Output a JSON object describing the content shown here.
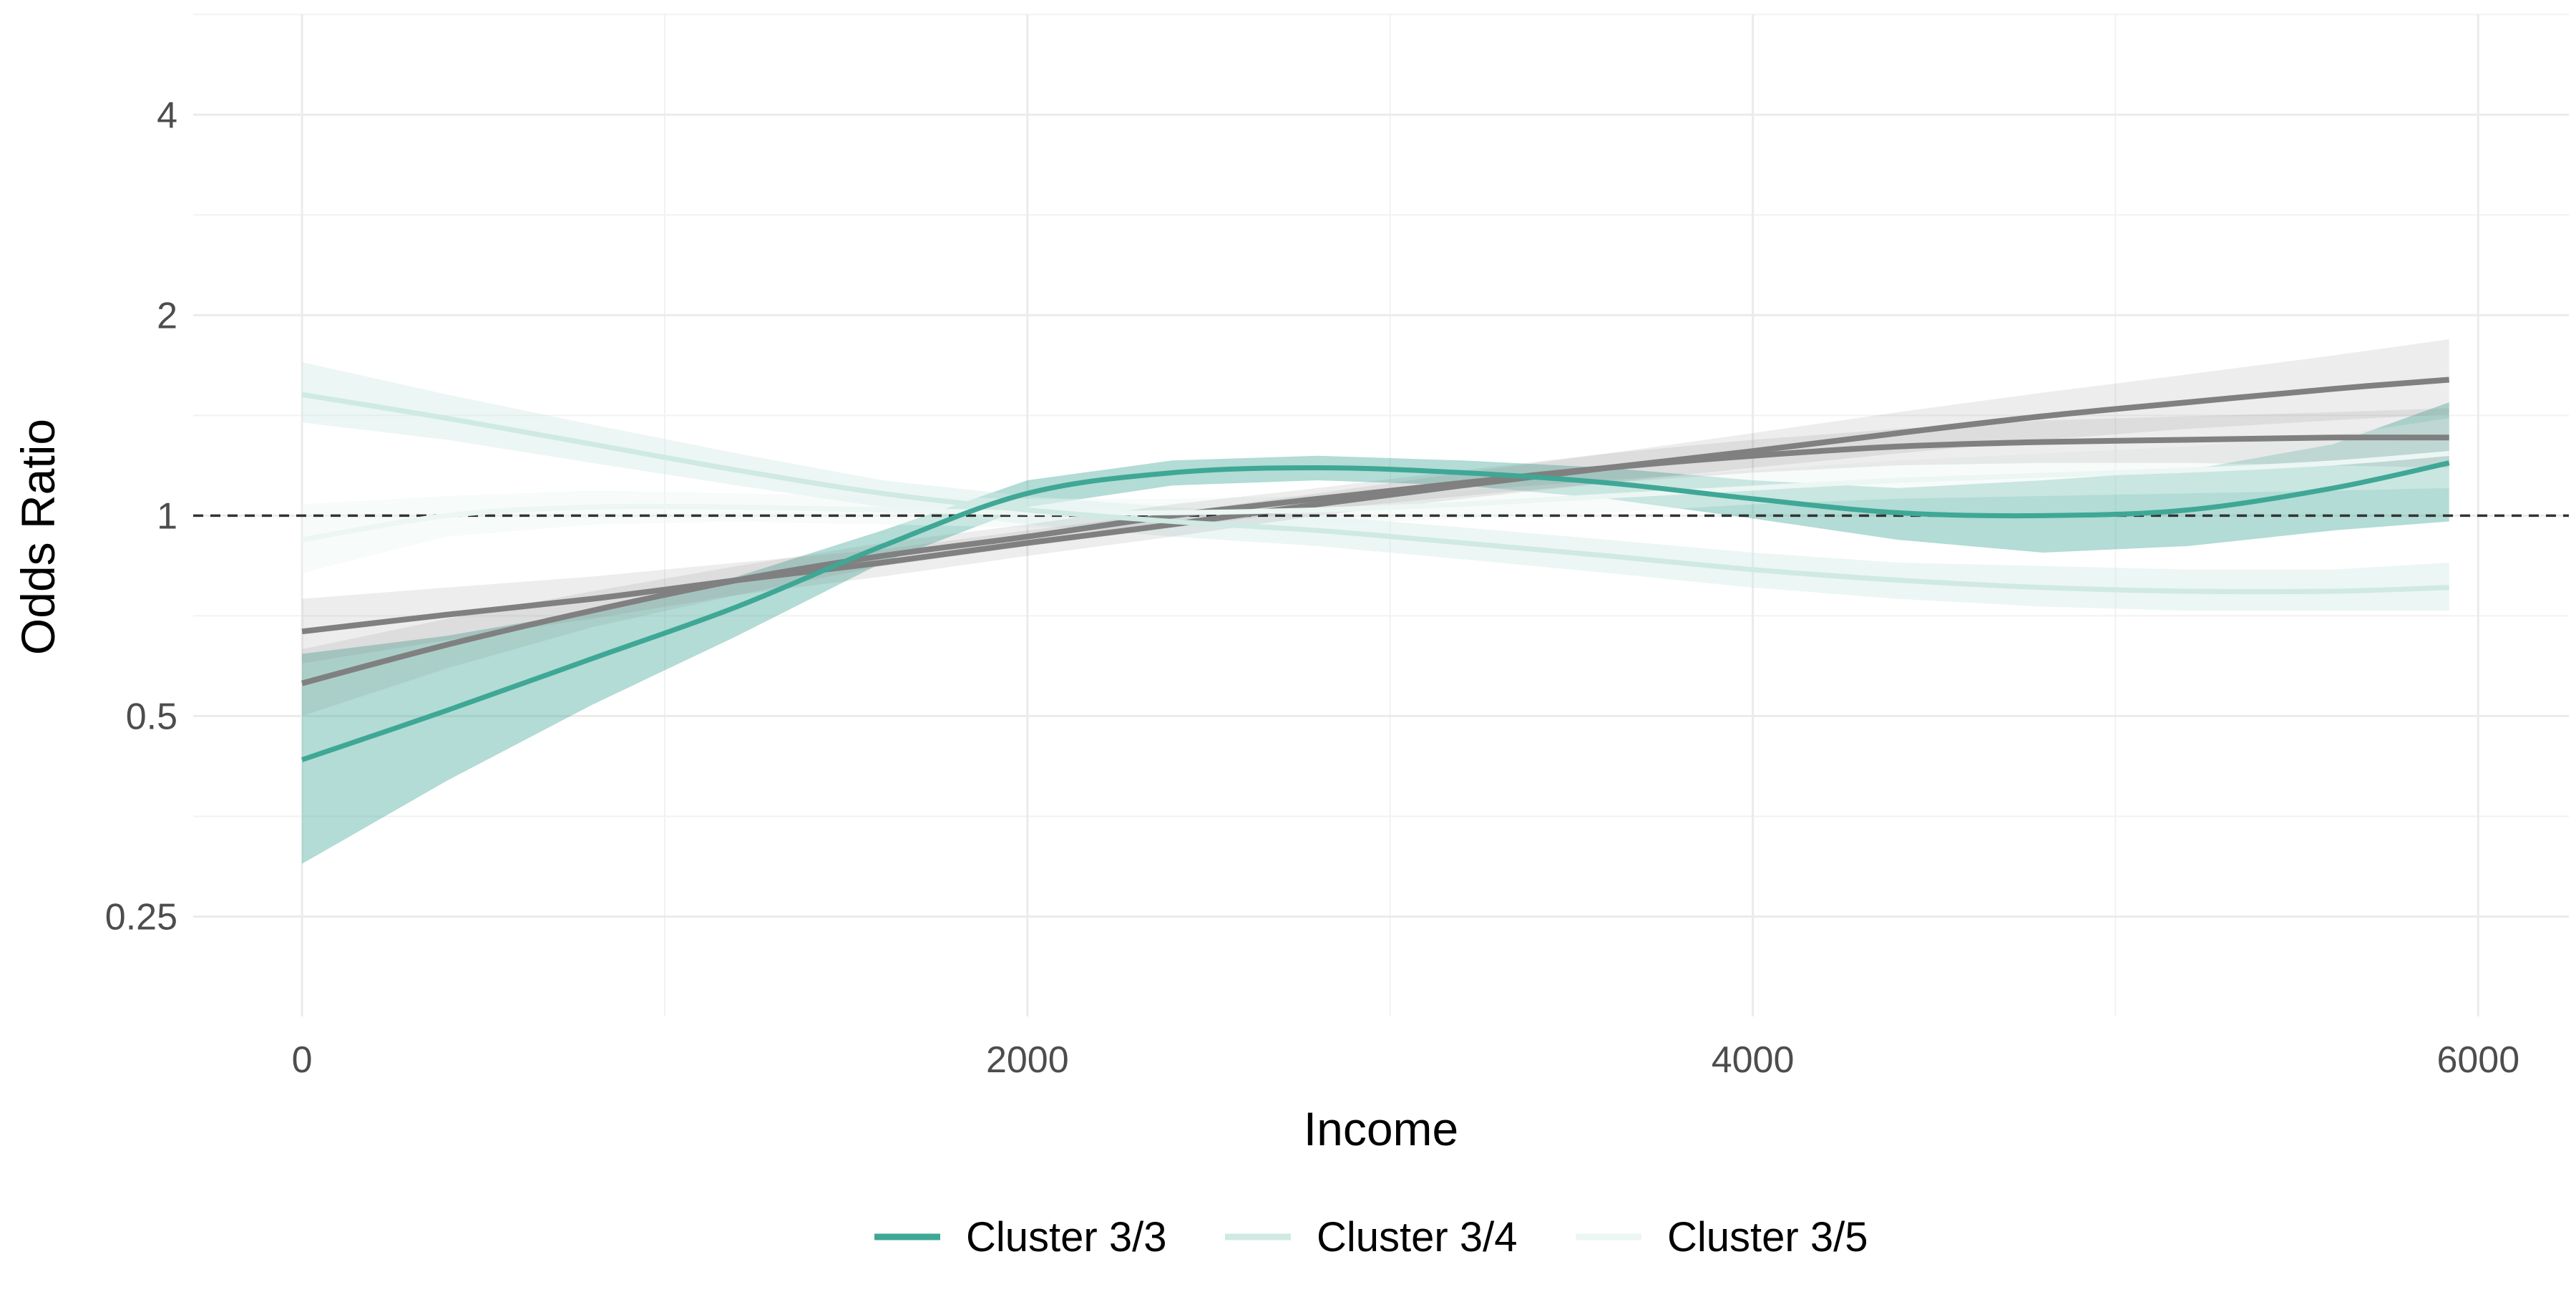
{
  "chart_data": {
    "type": "line",
    "title": "",
    "xlabel": "Income",
    "ylabel": "Odds Ratio",
    "x_ticks": [
      0,
      2000,
      4000,
      6000
    ],
    "x_tick_labels": [
      "0",
      "2000",
      "4000",
      "6000"
    ],
    "xlim": [
      -300,
      6250
    ],
    "y_scale": "log2",
    "y_ticks": [
      0.25,
      0.5,
      1,
      2,
      4
    ],
    "y_tick_labels": [
      "0.25",
      "0.5",
      "1",
      "2",
      "4"
    ],
    "ylim": [
      0.177,
      5.66
    ],
    "grid": true,
    "reference_line": {
      "y": 1,
      "style": "dashed",
      "color": "#333333"
    },
    "legend_position": "bottom",
    "legend": [
      {
        "label": "Cluster 3/3",
        "color": "#3fa796"
      },
      {
        "label": "Cluster 3/4",
        "color": "#cfe9e3"
      },
      {
        "label": "Cluster 3/5",
        "color": "#ecf6f3"
      }
    ],
    "x": [
      0,
      400,
      800,
      1200,
      1600,
      2000,
      2400,
      2800,
      3200,
      3600,
      4000,
      4400,
      4800,
      5200,
      5600,
      5920
    ],
    "series": [
      {
        "name": "Cluster 3/3",
        "color": "#3fa796",
        "values": [
          0.43,
          0.51,
          0.61,
          0.73,
          0.9,
          1.08,
          1.16,
          1.18,
          1.16,
          1.12,
          1.06,
          1.01,
          1.0,
          1.02,
          1.1,
          1.2
        ],
        "lower": [
          0.3,
          0.4,
          0.52,
          0.66,
          0.85,
          1.03,
          1.11,
          1.13,
          1.11,
          1.06,
          0.99,
          0.92,
          0.88,
          0.9,
          0.95,
          0.98
        ],
        "upper": [
          0.62,
          0.66,
          0.72,
          0.81,
          0.95,
          1.13,
          1.21,
          1.23,
          1.21,
          1.18,
          1.13,
          1.1,
          1.13,
          1.17,
          1.28,
          1.48
        ]
      },
      {
        "name": "Cluster 3/4",
        "color": "#cfe9e3",
        "values": [
          1.52,
          1.4,
          1.28,
          1.17,
          1.08,
          1.02,
          0.98,
          0.95,
          0.91,
          0.87,
          0.83,
          0.8,
          0.78,
          0.77,
          0.77,
          0.78
        ],
        "lower": [
          1.38,
          1.3,
          1.2,
          1.11,
          1.03,
          0.97,
          0.93,
          0.9,
          0.86,
          0.82,
          0.78,
          0.75,
          0.73,
          0.72,
          0.72,
          0.72
        ],
        "upper": [
          1.7,
          1.52,
          1.37,
          1.24,
          1.13,
          1.07,
          1.03,
          1.0,
          0.96,
          0.92,
          0.88,
          0.85,
          0.84,
          0.83,
          0.83,
          0.85
        ]
      },
      {
        "name": "Cluster 3/5",
        "color": "#ecf6f3",
        "values": [
          0.92,
          1.0,
          1.03,
          1.03,
          1.02,
          1.01,
          1.01,
          1.02,
          1.04,
          1.07,
          1.1,
          1.13,
          1.15,
          1.17,
          1.2,
          1.24
        ],
        "lower": [
          0.82,
          0.93,
          0.97,
          0.98,
          0.97,
          0.96,
          0.96,
          0.97,
          0.99,
          1.01,
          1.04,
          1.06,
          1.07,
          1.08,
          1.09,
          1.1
        ],
        "upper": [
          1.04,
          1.07,
          1.09,
          1.08,
          1.07,
          1.06,
          1.06,
          1.07,
          1.09,
          1.13,
          1.17,
          1.21,
          1.24,
          1.27,
          1.32,
          1.4
        ]
      },
      {
        "name": "",
        "color": "#808080",
        "values": [
          0.67,
          0.71,
          0.75,
          0.8,
          0.85,
          0.91,
          0.97,
          1.04,
          1.11,
          1.18,
          1.25,
          1.33,
          1.41,
          1.48,
          1.55,
          1.6
        ],
        "lower": [
          0.6,
          0.65,
          0.7,
          0.76,
          0.81,
          0.87,
          0.93,
          1.0,
          1.06,
          1.12,
          1.18,
          1.24,
          1.3,
          1.35,
          1.39,
          1.42
        ],
        "upper": [
          0.75,
          0.78,
          0.81,
          0.85,
          0.89,
          0.95,
          1.01,
          1.08,
          1.16,
          1.24,
          1.33,
          1.43,
          1.53,
          1.63,
          1.74,
          1.84
        ]
      },
      {
        "name": "",
        "color": "#808080",
        "values": [
          0.56,
          0.64,
          0.72,
          0.8,
          0.87,
          0.93,
          1.0,
          1.06,
          1.12,
          1.18,
          1.23,
          1.27,
          1.29,
          1.3,
          1.31,
          1.31
        ],
        "lower": [
          0.5,
          0.59,
          0.68,
          0.76,
          0.84,
          0.9,
          0.96,
          1.02,
          1.07,
          1.12,
          1.16,
          1.19,
          1.2,
          1.2,
          1.19,
          1.18
        ],
        "upper": [
          0.63,
          0.7,
          0.77,
          0.84,
          0.91,
          0.97,
          1.04,
          1.1,
          1.17,
          1.24,
          1.3,
          1.35,
          1.39,
          1.41,
          1.43,
          1.45
        ]
      }
    ]
  }
}
